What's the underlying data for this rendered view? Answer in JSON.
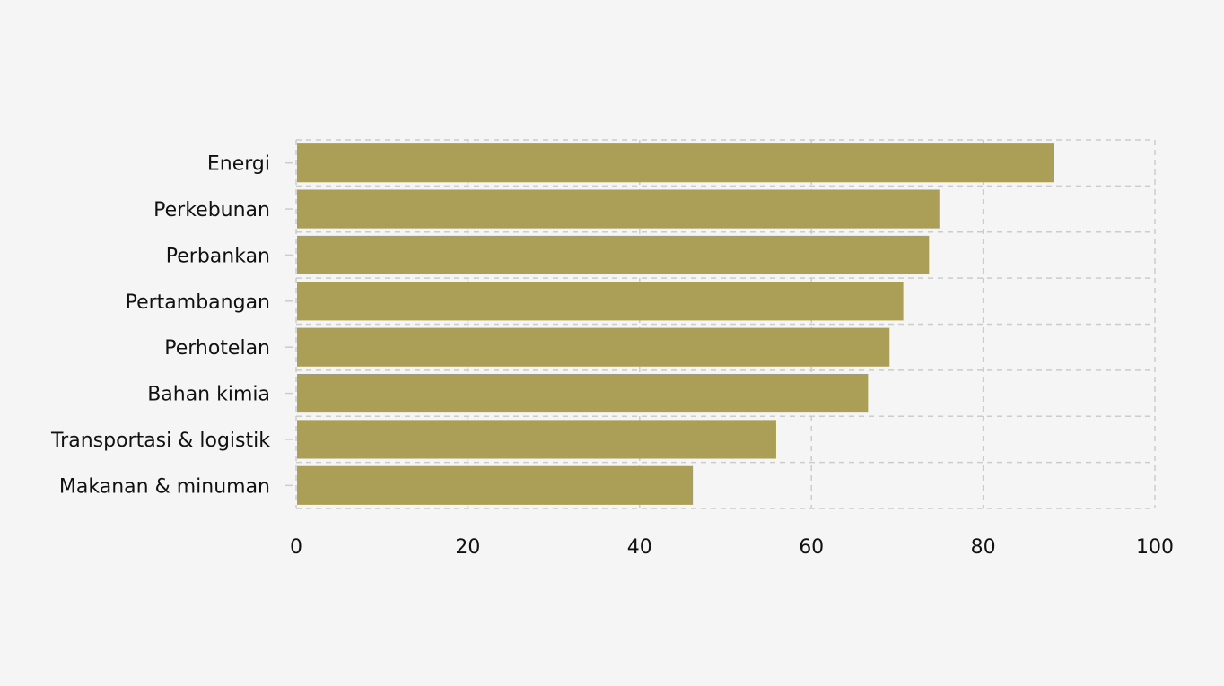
{
  "chart_data": {
    "type": "bar",
    "orientation": "horizontal",
    "title": "",
    "xlabel": "",
    "ylabel": "",
    "categories": [
      "Energi",
      "Perkebunan",
      "Perbankan",
      "Pertambangan",
      "Perhotelan",
      "Bahan kimia",
      "Transportasi & logistik",
      "Makanan & minuman"
    ],
    "values": [
      88.2,
      74.9,
      73.7,
      70.7,
      69.1,
      66.6,
      55.9,
      46.2
    ],
    "xlim": [
      0,
      100
    ],
    "xticks": [
      "0",
      "20",
      "40",
      "60",
      "80",
      "100"
    ],
    "grid": true,
    "legend": "none",
    "colors": {
      "bar": "#ab9f57",
      "grid": "#cccccc",
      "background": "#f5f5f5",
      "text": "#111111"
    }
  }
}
